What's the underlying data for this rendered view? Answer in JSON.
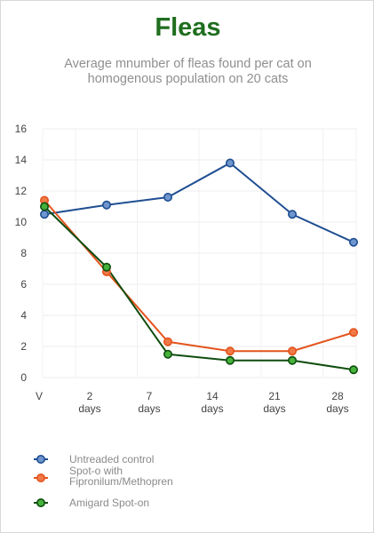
{
  "chart_data": {
    "type": "line",
    "title": "Fleas",
    "subtitle": "Average  mnumber of fleas found per cat on\nhomogenous population on 20 cats",
    "x_tick_lines": [
      [
        "V",
        ""
      ],
      [
        "2",
        "days"
      ],
      [
        "7",
        "days"
      ],
      [
        "14",
        "days"
      ],
      [
        "21",
        "days"
      ],
      [
        "28",
        "days"
      ]
    ],
    "ylim": [
      0,
      16
    ],
    "yticks": [
      0,
      2,
      4,
      6,
      8,
      10,
      12,
      14,
      16
    ],
    "grid": true,
    "legend_position": "bottom",
    "series": [
      {
        "name": "Untreaded control",
        "color": "#1f4e91",
        "marker_fill": "#6f95cf",
        "points": [
          [
            0,
            10.5
          ],
          [
            1,
            11.1
          ],
          [
            2,
            11.6
          ],
          [
            3,
            13.8
          ],
          [
            4,
            10.5
          ],
          [
            5,
            8.7
          ]
        ]
      },
      {
        "name": "Spot-o with Fipronilum/Methopren",
        "name_lines": [
          "Spot-o with",
          "Fipronilum/Methopren"
        ],
        "color": "#e4531c",
        "marker_fill": "#f07a47",
        "points": [
          [
            0,
            11.4
          ],
          [
            1,
            6.8
          ],
          [
            2,
            2.3
          ],
          [
            3,
            1.7
          ],
          [
            4,
            1.7
          ],
          [
            5,
            2.9
          ]
        ]
      },
      {
        "name": "Amigard Spot-on",
        "color": "#0f4d0f",
        "marker_fill": "#45b23b",
        "points": [
          [
            0,
            11.0
          ],
          [
            1,
            7.1
          ],
          [
            2,
            1.5
          ],
          [
            3,
            1.1
          ],
          [
            4,
            1.1
          ],
          [
            5,
            0.5
          ]
        ]
      }
    ]
  }
}
